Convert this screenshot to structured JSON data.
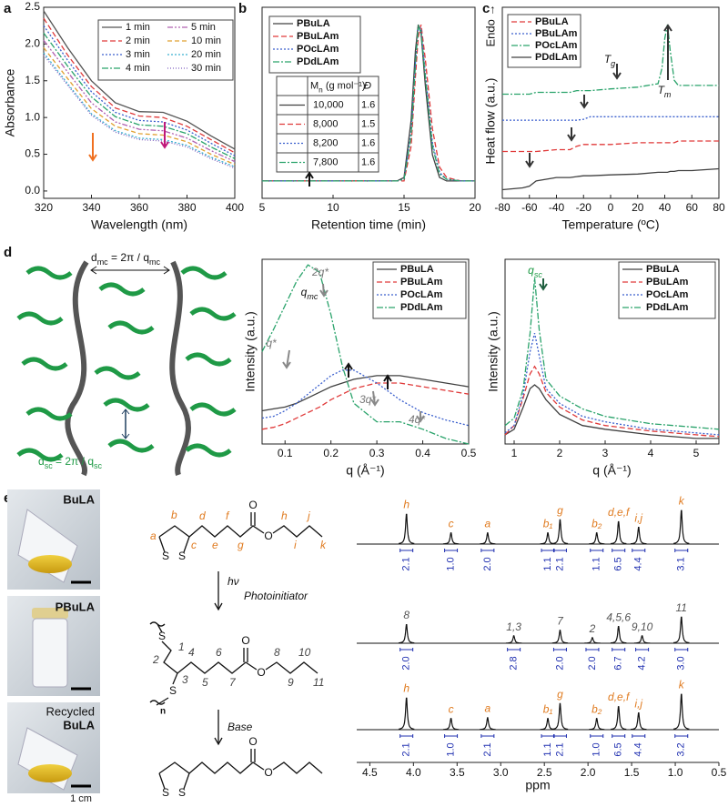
{
  "panel_labels": [
    "a",
    "b",
    "c",
    "d",
    "e"
  ],
  "chart_data": [
    {
      "type": "line",
      "xlabel": "Wavelength (nm)",
      "ylabel": "Absorbance",
      "xlim": [
        320,
        400
      ],
      "ylim": [
        -0.1,
        2.5
      ],
      "xticks": [
        320,
        340,
        360,
        380,
        400
      ],
      "yticks": [
        {
          "value": 0,
          "label": "0.0"
        },
        0.5,
        {
          "value": 1,
          "label": "1.0"
        },
        1.5,
        {
          "value": 2,
          "label": "2.0"
        },
        2.5
      ],
      "x": [
        320,
        330,
        340,
        350,
        360,
        370,
        380,
        390,
        400
      ],
      "series": [
        {
          "name": "1 min",
          "color": "#555555",
          "dash": "",
          "values": [
            2.45,
            1.95,
            1.5,
            1.2,
            1.08,
            1.07,
            0.95,
            0.75,
            0.57
          ]
        },
        {
          "name": "2 min",
          "color": "#e03a3a",
          "dash": "6,3",
          "values": [
            2.35,
            1.85,
            1.42,
            1.13,
            1.02,
            1.0,
            0.88,
            0.7,
            0.52
          ]
        },
        {
          "name": "3 min",
          "color": "#3a5fcd",
          "dash": "2,2",
          "values": [
            2.25,
            1.78,
            1.35,
            1.07,
            0.96,
            0.94,
            0.83,
            0.65,
            0.48
          ]
        },
        {
          "name": "4 min",
          "color": "#2aa36b",
          "dash": "7,2,2,2",
          "values": [
            2.15,
            1.7,
            1.28,
            1.01,
            0.9,
            0.88,
            0.78,
            0.6,
            0.44
          ]
        },
        {
          "name": "5 min",
          "color": "#b060b0",
          "dash": "6,2,2,2,2,2",
          "values": [
            2.05,
            1.62,
            1.2,
            0.94,
            0.84,
            0.82,
            0.72,
            0.55,
            0.4
          ]
        },
        {
          "name": "10 min",
          "color": "#e0a030",
          "dash": "5,3",
          "values": [
            1.95,
            1.53,
            1.12,
            0.88,
            0.78,
            0.76,
            0.67,
            0.5,
            0.36
          ]
        },
        {
          "name": "20 min",
          "color": "#3ab0d0",
          "dash": "2,2",
          "values": [
            1.88,
            1.46,
            1.05,
            0.82,
            0.72,
            0.7,
            0.62,
            0.46,
            0.33
          ]
        },
        {
          "name": "30 min",
          "color": "#8060c0",
          "dash": "1,2",
          "values": [
            1.85,
            1.44,
            1.03,
            0.8,
            0.7,
            0.68,
            0.6,
            0.44,
            0.31
          ]
        }
      ]
    },
    {
      "type": "line",
      "xlabel": "Retention time (min)",
      "xlim": [
        5,
        20
      ],
      "ylim": [
        0,
        1.1
      ],
      "xticks": [
        5,
        10,
        15,
        20
      ],
      "x": [
        5,
        14.5,
        15,
        15.5,
        15.8,
        16,
        16.2,
        16.5,
        17,
        17.5,
        18,
        19,
        20
      ],
      "series": [
        {
          "name": "PBuLA",
          "color": "#404040",
          "dash": "",
          "values": [
            0.1,
            0.1,
            0.12,
            0.45,
            0.85,
            1.0,
            0.95,
            0.65,
            0.25,
            0.12,
            0.1,
            0.1,
            0.1
          ]
        },
        {
          "name": "PBuLAm",
          "color": "#e03a3a",
          "dash": "6,3",
          "values": [
            0.1,
            0.1,
            0.1,
            0.3,
            0.7,
            0.93,
            1.0,
            0.8,
            0.4,
            0.18,
            0.12,
            0.1,
            0.1
          ]
        },
        {
          "name": "POcLAm",
          "color": "#3a5fcd",
          "dash": "2,2",
          "values": [
            0.1,
            0.1,
            0.11,
            0.38,
            0.78,
            0.98,
            0.98,
            0.72,
            0.32,
            0.15,
            0.11,
            0.1,
            0.1
          ]
        },
        {
          "name": "PDdLAm",
          "color": "#2aa36b",
          "dash": "7,2,2,2",
          "values": [
            0.1,
            0.1,
            0.11,
            0.36,
            0.77,
            0.99,
            0.96,
            0.7,
            0.3,
            0.14,
            0.11,
            0.1,
            0.1
          ]
        }
      ],
      "table": {
        "columns": [
          [
            {
              "text": "M"
            },
            {
              "text": "n",
              "sub": true
            },
            {
              "text": " (g mol⁻¹)"
            }
          ],
          "Đ"
        ],
        "rows": [
          [
            "10,000",
            1.6
          ],
          [
            "8,000",
            1.5
          ],
          [
            "8,200",
            1.6
          ],
          [
            "7,800",
            1.6
          ]
        ]
      }
    },
    {
      "type": "line",
      "xlabel": "Temperature (ºC)",
      "ylabel": "Heat flow (a.u.)",
      "xlim": [
        -80,
        80
      ],
      "ylim": [
        0,
        1.1
      ],
      "xticks": [
        -80,
        -60,
        -40,
        -20,
        0,
        20,
        40,
        60,
        80
      ],
      "x": [
        -80,
        -65,
        -60,
        -55,
        -40,
        -30,
        -25,
        -20,
        -15,
        0,
        20,
        35,
        38,
        40,
        42,
        44,
        47,
        50,
        60,
        80
      ],
      "series": [
        {
          "name": "PBuLA",
          "color": "#e03a3a",
          "dash": "6,3",
          "values": [
            0.27,
            0.27,
            0.27,
            0.27,
            0.28,
            0.28,
            0.3,
            0.31,
            0.31,
            0.31,
            0.32,
            0.32,
            0.32,
            0.32,
            0.32,
            0.32,
            0.32,
            0.33,
            0.33,
            0.33
          ]
        },
        {
          "name": "PBuLAm",
          "color": "#3a5fcd",
          "dash": "2,2",
          "values": [
            0.45,
            0.45,
            0.45,
            0.45,
            0.45,
            0.45,
            0.45,
            0.455,
            0.47,
            0.47,
            0.47,
            0.47,
            0.47,
            0.47,
            0.47,
            0.47,
            0.47,
            0.47,
            0.47,
            0.47
          ]
        },
        {
          "name": "POcLAm",
          "color": "#2aa36b",
          "dash": "7,2,2,2",
          "values": [
            0.6,
            0.6,
            0.6,
            0.61,
            0.61,
            0.61,
            0.62,
            0.62,
            0.62,
            0.63,
            0.64,
            0.66,
            0.75,
            0.92,
            1.0,
            0.85,
            0.68,
            0.65,
            0.65,
            0.65
          ]
        },
        {
          "name": "PDdLAm",
          "color": "#404040",
          "dash": "",
          "values": [
            0.05,
            0.06,
            0.07,
            0.1,
            0.12,
            0.12,
            0.125,
            0.13,
            0.13,
            0.135,
            0.14,
            0.15,
            0.15,
            0.15,
            0.15,
            0.155,
            0.155,
            0.16,
            0.16,
            0.17
          ]
        }
      ],
      "annotations": [
        "Endo →",
        [
          {
            "text": "T"
          },
          {
            "text": "g",
            "sub": true
          }
        ],
        [
          {
            "text": "T"
          },
          {
            "text": "m",
            "sub": true
          }
        ]
      ]
    },
    {
      "type": "line",
      "xlabel": "q (Å⁻¹)",
      "ylabel": "Intensity (a.u.)",
      "xlim": [
        0.05,
        0.5
      ],
      "ylim": [
        0,
        1
      ],
      "xticks": [
        0.1,
        0.2,
        0.3,
        0.4,
        0.5
      ],
      "x": [
        0.05,
        0.075,
        0.1,
        0.125,
        0.15,
        0.175,
        0.2,
        0.225,
        0.25,
        0.3,
        0.35,
        0.4,
        0.45,
        0.5
      ],
      "series": [
        {
          "name": "PBuLA",
          "color": "#404040",
          "dash": "",
          "values": [
            0.18,
            0.19,
            0.2,
            0.22,
            0.25,
            0.28,
            0.31,
            0.33,
            0.35,
            0.37,
            0.37,
            0.35,
            0.33,
            0.31
          ]
        },
        {
          "name": "PBuLAm",
          "color": "#e03a3a",
          "dash": "6,3",
          "values": [
            0.08,
            0.09,
            0.11,
            0.14,
            0.17,
            0.2,
            0.24,
            0.27,
            0.3,
            0.33,
            0.33,
            0.31,
            0.29,
            0.27
          ]
        },
        {
          "name": "POcLAm",
          "color": "#3a5fcd",
          "dash": "2,2",
          "values": [
            0.14,
            0.15,
            0.18,
            0.22,
            0.27,
            0.32,
            0.37,
            0.4,
            0.4,
            0.33,
            0.24,
            0.17,
            0.13,
            0.1
          ]
        },
        {
          "name": "PDdLAm",
          "color": "#2aa36b",
          "dash": "7,2,2,2",
          "values": [
            0.5,
            0.62,
            0.75,
            0.88,
            0.97,
            0.93,
            0.7,
            0.42,
            0.22,
            0.12,
            0.12,
            0.08,
            0.03,
            0.0
          ]
        }
      ],
      "annotations": [
        "q*",
        "2q*",
        [
          {
            "text": "q"
          },
          {
            "text": "mc",
            "sub": true
          }
        ],
        "3q*",
        "4q*"
      ]
    },
    {
      "type": "line",
      "xlabel": "q (Å⁻¹)",
      "ylabel": "Intensity (a.u.)",
      "xlim": [
        0.8,
        5.5
      ],
      "ylim": [
        0,
        1
      ],
      "xticks": [
        1,
        2,
        3,
        4,
        5
      ],
      "x": [
        0.8,
        1.0,
        1.2,
        1.35,
        1.45,
        1.55,
        1.7,
        2.0,
        2.5,
        3,
        4,
        5,
        5.5
      ],
      "series": [
        {
          "name": "PBuLA",
          "color": "#404040",
          "dash": "",
          "values": [
            0.05,
            0.08,
            0.2,
            0.3,
            0.32,
            0.3,
            0.24,
            0.16,
            0.1,
            0.08,
            0.05,
            0.03,
            0.03
          ]
        },
        {
          "name": "PBuLAm",
          "color": "#e03a3a",
          "dash": "6,3",
          "values": [
            0.05,
            0.1,
            0.25,
            0.38,
            0.42,
            0.38,
            0.28,
            0.2,
            0.13,
            0.1,
            0.07,
            0.05,
            0.04
          ]
        },
        {
          "name": "POcLAm",
          "color": "#3a5fcd",
          "dash": "2,2",
          "values": [
            0.06,
            0.1,
            0.27,
            0.5,
            0.6,
            0.48,
            0.3,
            0.22,
            0.15,
            0.12,
            0.08,
            0.06,
            0.05
          ]
        },
        {
          "name": "PDdLAm",
          "color": "#2aa36b",
          "dash": "7,2,2,2",
          "values": [
            0.1,
            0.14,
            0.3,
            0.6,
            0.9,
            0.62,
            0.35,
            0.26,
            0.19,
            0.15,
            0.11,
            0.09,
            0.08
          ]
        }
      ],
      "annotations": [
        [
          {
            "text": "q"
          },
          {
            "text": "sc",
            "sub": true
          }
        ]
      ]
    },
    {
      "type": "nmr",
      "xlabel": "ppm",
      "xlim": [
        4.65,
        0.5
      ],
      "xticks": [
        4.5,
        {
          "value": 4,
          "label": "4.0"
        },
        3.5,
        {
          "value": 3,
          "label": "3.0"
        },
        2.5,
        {
          "value": 2,
          "label": "2.0"
        },
        1.5,
        {
          "value": 1,
          "label": "1.0"
        },
        0.5
      ],
      "spectra": [
        {
          "label_color": "#e07b20",
          "peaks": [
            {
              "ppm": 4.08,
              "height": 0.8,
              "label": "h"
            },
            {
              "ppm": 3.57,
              "height": 0.3,
              "label": "c"
            },
            {
              "ppm": 3.15,
              "height": 0.3,
              "label": "a"
            },
            {
              "ppm": 2.46,
              "height": 0.3,
              "label": "b₁"
            },
            {
              "ppm": 2.32,
              "height": 0.65,
              "label": "g"
            },
            {
              "ppm": 1.9,
              "height": 0.3,
              "label": "b₂"
            },
            {
              "ppm": 1.65,
              "height": 0.6,
              "label": "d,e,f"
            },
            {
              "ppm": 1.42,
              "height": 0.45,
              "label": "i,j"
            },
            {
              "ppm": 0.93,
              "height": 0.9,
              "label": "k"
            }
          ],
          "integrals": [
            2.1,
            1.0,
            2.0,
            1.1,
            2.1,
            1.1,
            6.5,
            4.4,
            3.1
          ],
          "integral_labels": [
            "2.1",
            "1.0",
            "2.0",
            "1.1",
            "2.1",
            "1.1",
            "6.5",
            "4.4",
            "3.1"
          ]
        },
        {
          "label_color": "#555555",
          "peaks": [
            {
              "ppm": 4.08,
              "height": 0.5,
              "label": "8"
            },
            {
              "ppm": 2.85,
              "height": 0.2,
              "label": "1,3"
            },
            {
              "ppm": 2.32,
              "height": 0.35,
              "label": "7"
            },
            {
              "ppm": 1.95,
              "height": 0.15,
              "label": "2"
            },
            {
              "ppm": 1.65,
              "height": 0.45,
              "label": "4,5,6"
            },
            {
              "ppm": 1.38,
              "height": 0.2,
              "label": "9,10"
            },
            {
              "ppm": 0.93,
              "height": 0.7,
              "label": "11"
            }
          ],
          "integrals": [
            2.0,
            2.8,
            2.0,
            2.0,
            6.7,
            4.2,
            3.0
          ],
          "integral_labels": [
            "2.0",
            "2.8",
            "2.0",
            "2.0",
            "6.7",
            "4.2",
            "3.0"
          ]
        },
        {
          "label_color": "#e07b20",
          "peaks": [
            {
              "ppm": 4.08,
              "height": 0.85,
              "label": "h"
            },
            {
              "ppm": 3.57,
              "height": 0.3,
              "label": "c"
            },
            {
              "ppm": 3.15,
              "height": 0.32,
              "label": "a"
            },
            {
              "ppm": 2.46,
              "height": 0.3,
              "label": "b₁"
            },
            {
              "ppm": 2.32,
              "height": 0.7,
              "label": "g"
            },
            {
              "ppm": 1.9,
              "height": 0.3,
              "label": "b₂"
            },
            {
              "ppm": 1.65,
              "height": 0.62,
              "label": "d,e,f"
            },
            {
              "ppm": 1.42,
              "height": 0.45,
              "label": "i,j"
            },
            {
              "ppm": 0.93,
              "height": 0.95,
              "label": "k"
            }
          ],
          "integrals": [
            2.1,
            1.0,
            2.1,
            1.1,
            2.1,
            1.0,
            6.5,
            4.4,
            3.2
          ],
          "integral_labels": [
            "2.1",
            "1.0",
            "2.1",
            "1.1",
            "2.1",
            "1.0",
            "6.5",
            "4.4",
            "3.2"
          ]
        }
      ]
    }
  ],
  "diagram": {
    "d_mc": [
      {
        "text": "d"
      },
      {
        "text": "mc",
        "sub": true
      },
      {
        "text": " = 2π / q"
      },
      {
        "text": "mc",
        "sub": true
      }
    ],
    "d_sc": [
      {
        "text": "d"
      },
      {
        "text": "sc",
        "sub": true
      },
      {
        "text": " = 2π / q"
      },
      {
        "text": "sc",
        "sub": true
      }
    ]
  },
  "photos": [
    {
      "label_lines": [
        "BuLA"
      ]
    },
    {
      "label_lines": [
        "PBuLA"
      ]
    },
    {
      "label_lines": [
        "Recycled",
        "BuLA"
      ]
    }
  ],
  "scale_bar": "1 cm",
  "scheme": {
    "monomer_labels": [
      "a",
      "b",
      "c",
      "d",
      "e",
      "f",
      "g",
      "h",
      "i",
      "j",
      "k"
    ],
    "polymer_labels": [
      "1",
      "2",
      "3",
      "4",
      "5",
      "6",
      "7",
      "8",
      "9",
      "10",
      "11"
    ],
    "light": "hν",
    "reagent": "Photoinitiator",
    "base": "Base",
    "sulfur": "S",
    "oxygen": "O",
    "repeat": "n"
  }
}
